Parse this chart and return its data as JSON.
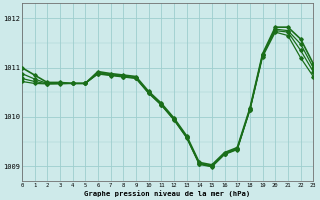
{
  "hours": [
    0,
    1,
    2,
    3,
    4,
    5,
    6,
    7,
    8,
    9,
    10,
    11,
    12,
    13,
    14,
    15,
    16,
    17,
    18,
    19,
    20,
    21,
    22,
    23
  ],
  "pressure_lines": [
    [
      1011.0,
      1010.85,
      1010.7,
      1010.7,
      1010.68,
      1010.68,
      1010.92,
      1010.88,
      1010.85,
      1010.82,
      1010.52,
      1010.28,
      1009.98,
      1009.62,
      1009.08,
      1009.03,
      1009.28,
      1009.38,
      1010.18,
      1011.28,
      1011.82,
      1011.82,
      1011.58,
      1011.08
    ],
    [
      1010.88,
      1010.77,
      1010.68,
      1010.69,
      1010.68,
      1010.68,
      1010.9,
      1010.86,
      1010.83,
      1010.8,
      1010.5,
      1010.26,
      1009.96,
      1009.6,
      1009.06,
      1009.01,
      1009.26,
      1009.36,
      1010.16,
      1011.26,
      1011.78,
      1011.75,
      1011.48,
      1011.0
    ],
    [
      1010.78,
      1010.72,
      1010.67,
      1010.68,
      1010.68,
      1010.68,
      1010.88,
      1010.85,
      1010.82,
      1010.79,
      1010.49,
      1010.25,
      1009.95,
      1009.59,
      1009.05,
      1009.0,
      1009.25,
      1009.35,
      1010.15,
      1011.25,
      1011.75,
      1011.72,
      1011.35,
      1010.92
    ],
    [
      1010.72,
      1010.68,
      1010.67,
      1010.67,
      1010.68,
      1010.68,
      1010.87,
      1010.84,
      1010.81,
      1010.78,
      1010.48,
      1010.24,
      1009.94,
      1009.58,
      1009.04,
      1008.99,
      1009.24,
      1009.34,
      1010.14,
      1011.22,
      1011.72,
      1011.65,
      1011.2,
      1010.82
    ]
  ],
  "line_color": "#1a6e1a",
  "bg_color": "#ceeaea",
  "grid_color": "#9ecece",
  "title": "Graphe pression niveau de la mer (hPa)",
  "ylabel_vals": [
    1009,
    1010,
    1011,
    1012
  ],
  "xlim": [
    0,
    23
  ],
  "ylim": [
    1008.7,
    1012.3
  ],
  "marker": "D",
  "marker_size": 1.8,
  "line_width": 0.9
}
